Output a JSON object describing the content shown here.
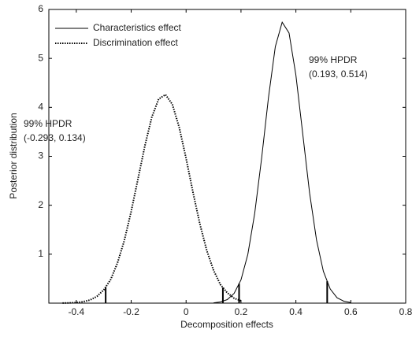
{
  "chart_data": {
    "type": "line",
    "x_label": "Decomposition effects",
    "y_label": "Posterior distribution",
    "xlim": [
      -0.5,
      0.8
    ],
    "xticks": [
      -0.4,
      -0.2,
      0,
      0.2,
      0.4,
      0.6,
      0.8
    ],
    "ylim": [
      0,
      6
    ],
    "yticks": [
      1,
      2,
      3,
      4,
      5,
      6
    ],
    "legend": "upper left",
    "series": [
      {
        "name": "Characteristics effect",
        "color": "#000000",
        "dash": "solid",
        "x": [
          0.1,
          0.125,
          0.15,
          0.175,
          0.2,
          0.225,
          0.25,
          0.275,
          0.3,
          0.325,
          0.35,
          0.375,
          0.4,
          0.425,
          0.45,
          0.475,
          0.5,
          0.525,
          0.55,
          0.575,
          0.6
        ],
        "values": [
          0.007,
          0.024,
          0.073,
          0.199,
          0.475,
          0.995,
          1.83,
          2.96,
          4.2,
          5.24,
          5.74,
          5.52,
          4.66,
          3.46,
          2.25,
          1.29,
          0.65,
          0.29,
          0.11,
          0.038,
          0.011
        ],
        "hpdr": [
          0.193,
          0.514
        ],
        "hpdr_title": "99% HPDR",
        "hpdr_label": "(0.193, 0.514)"
      },
      {
        "name": "Discrimination effect",
        "color": "#000000",
        "dash": "dotted",
        "x": [
          -0.45,
          -0.425,
          -0.4,
          -0.375,
          -0.35,
          -0.325,
          -0.3,
          -0.275,
          -0.25,
          -0.225,
          -0.2,
          -0.175,
          -0.15,
          -0.125,
          -0.1,
          -0.075,
          -0.05,
          -0.025,
          0,
          0.025,
          0.05,
          0.075,
          0.1,
          0.125,
          0.15,
          0.175,
          0.2
        ],
        "values": [
          0.002,
          0.005,
          0.012,
          0.029,
          0.065,
          0.137,
          0.27,
          0.48,
          0.82,
          1.28,
          1.87,
          2.55,
          3.22,
          3.8,
          4.17,
          4.26,
          4.06,
          3.59,
          2.96,
          2.27,
          1.62,
          1.08,
          0.67,
          0.38,
          0.21,
          0.1,
          0.048
        ],
        "hpdr": [
          -0.293,
          0.134
        ],
        "hpdr_title": "99% HPDR",
        "hpdr_label": "(-0.293, 0.134)"
      }
    ]
  }
}
